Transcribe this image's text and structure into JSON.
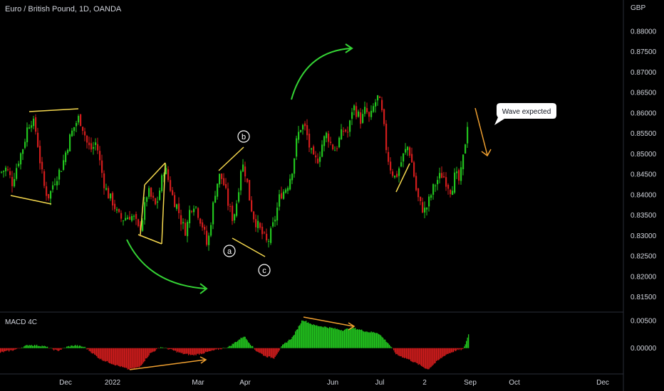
{
  "header": {
    "symbol_title": "Euro / British Pound, 1D, OANDA",
    "currency": "GBP"
  },
  "macd": {
    "title": "MACD 4C"
  },
  "annotation": {
    "callout_text": "Wave expected",
    "labels": [
      "a",
      "b",
      "c"
    ]
  },
  "colors": {
    "background": "#000000",
    "up": "#22c41e",
    "down": "#d01c1c",
    "pattern_line": "#f5d84e",
    "arrow_green": "#35d435",
    "arrow_orange": "#f0a030",
    "axis_text": "#d1d4dc",
    "separator": "#2a2e39"
  },
  "chart_data": [
    {
      "type": "candlestick",
      "title": "Euro / British Pound, 1D, OANDA",
      "x_ticks": [
        "Dec",
        "2022",
        "Mar",
        "Apr",
        "Jun",
        "Jul",
        "2",
        "Sep",
        "Oct",
        "Dec"
      ],
      "y_ticks": [
        "0.88000",
        "0.87500",
        "0.87000",
        "0.86500",
        "0.86000",
        "0.85500",
        "0.85000",
        "0.84500",
        "0.84000",
        "0.83500",
        "0.83000",
        "0.82500",
        "0.82000",
        "0.81500"
      ],
      "ylim": [
        0.8125,
        0.8845
      ],
      "close_path": [
        [
          0,
          0.8455
        ],
        [
          8,
          0.8465
        ],
        [
          16,
          0.843
        ],
        [
          24,
          0.848
        ],
        [
          32,
          0.852
        ],
        [
          38,
          0.857
        ],
        [
          44,
          0.8585
        ],
        [
          50,
          0.855
        ],
        [
          56,
          0.847
        ],
        [
          62,
          0.841
        ],
        [
          68,
          0.8395
        ],
        [
          74,
          0.843
        ],
        [
          80,
          0.845
        ],
        [
          86,
          0.847
        ],
        [
          92,
          0.851
        ],
        [
          98,
          0.8545
        ],
        [
          104,
          0.857
        ],
        [
          110,
          0.859
        ],
        [
          116,
          0.856
        ],
        [
          122,
          0.852
        ],
        [
          128,
          0.851
        ],
        [
          134,
          0.853
        ],
        [
          140,
          0.847
        ],
        [
          146,
          0.842
        ],
        [
          152,
          0.8395
        ],
        [
          158,
          0.838
        ],
        [
          164,
          0.835
        ],
        [
          170,
          0.834
        ],
        [
          176,
          0.8345
        ],
        [
          182,
          0.835
        ],
        [
          188,
          0.834
        ],
        [
          194,
          0.831
        ],
        [
          200,
          0.835
        ],
        [
          206,
          0.841
        ],
        [
          212,
          0.839
        ],
        [
          218,
          0.837
        ],
        [
          224,
          0.842
        ],
        [
          230,
          0.847
        ],
        [
          236,
          0.843
        ],
        [
          242,
          0.839
        ],
        [
          248,
          0.837
        ],
        [
          254,
          0.833
        ],
        [
          260,
          0.831
        ],
        [
          266,
          0.837
        ],
        [
          272,
          0.838
        ],
        [
          278,
          0.835
        ],
        [
          284,
          0.832
        ],
        [
          290,
          0.827
        ],
        [
          296,
          0.835
        ],
        [
          302,
          0.842
        ],
        [
          308,
          0.845
        ],
        [
          314,
          0.842
        ],
        [
          320,
          0.837
        ],
        [
          326,
          0.834
        ],
        [
          332,
          0.839
        ],
        [
          338,
          0.848
        ],
        [
          344,
          0.845
        ],
        [
          350,
          0.838
        ],
        [
          356,
          0.834
        ],
        [
          362,
          0.832
        ],
        [
          368,
          0.83
        ],
        [
          374,
          0.828
        ],
        [
          380,
          0.831
        ],
        [
          386,
          0.835
        ],
        [
          392,
          0.84
        ],
        [
          398,
          0.841
        ],
        [
          404,
          0.843
        ],
        [
          410,
          0.847
        ],
        [
          416,
          0.854
        ],
        [
          422,
          0.857
        ],
        [
          428,
          0.856
        ],
        [
          434,
          0.851
        ],
        [
          440,
          0.848
        ],
        [
          446,
          0.849
        ],
        [
          452,
          0.853
        ],
        [
          458,
          0.855
        ],
        [
          464,
          0.852
        ],
        [
          470,
          0.851
        ],
        [
          476,
          0.854
        ],
        [
          482,
          0.856
        ],
        [
          488,
          0.855
        ],
        [
          494,
          0.862
        ],
        [
          500,
          0.86
        ],
        [
          506,
          0.858
        ],
        [
          512,
          0.861
        ],
        [
          518,
          0.858
        ],
        [
          524,
          0.862
        ],
        [
          530,
          0.864
        ],
        [
          536,
          0.859
        ],
        [
          542,
          0.85
        ],
        [
          548,
          0.846
        ],
        [
          554,
          0.844
        ],
        [
          560,
          0.847
        ],
        [
          566,
          0.85
        ],
        [
          572,
          0.852
        ],
        [
          578,
          0.847
        ],
        [
          584,
          0.84
        ],
        [
          590,
          0.837
        ],
        [
          596,
          0.836
        ],
        [
          602,
          0.839
        ],
        [
          608,
          0.842
        ],
        [
          614,
          0.844
        ],
        [
          620,
          0.845
        ],
        [
          626,
          0.843
        ],
        [
          632,
          0.841
        ],
        [
          638,
          0.845
        ],
        [
          644,
          0.843
        ],
        [
          650,
          0.85
        ],
        [
          656,
          0.859
        ]
      ]
    },
    {
      "type": "bar",
      "title": "MACD 4C",
      "y_ticks": [
        "0.00500",
        "0.00000"
      ],
      "ylim": [
        -0.0042,
        0.0062
      ],
      "histogram_path": [
        [
          0,
          -0.0008
        ],
        [
          20,
          -0.0003
        ],
        [
          40,
          0.0006
        ],
        [
          60,
          0.0004
        ],
        [
          80,
          -0.0005
        ],
        [
          95,
          0.0003
        ],
        [
          105,
          0.0005
        ],
        [
          118,
          0.0002
        ],
        [
          140,
          -0.002
        ],
        [
          160,
          -0.003
        ],
        [
          180,
          -0.0039
        ],
        [
          195,
          -0.0035
        ],
        [
          210,
          -0.001
        ],
        [
          225,
          0.0002
        ],
        [
          240,
          -0.0003
        ],
        [
          255,
          -0.001
        ],
        [
          270,
          -0.0013
        ],
        [
          285,
          -0.0009
        ],
        [
          300,
          -0.0004
        ],
        [
          320,
          0.0002
        ],
        [
          342,
          0.0022
        ],
        [
          358,
          -0.0004
        ],
        [
          372,
          -0.0015
        ],
        [
          384,
          -0.0018
        ],
        [
          396,
          0.0005
        ],
        [
          410,
          0.002
        ],
        [
          424,
          0.0052
        ],
        [
          440,
          0.0042
        ],
        [
          460,
          0.0038
        ],
        [
          480,
          0.0033
        ],
        [
          495,
          0.0037
        ],
        [
          515,
          0.003
        ],
        [
          530,
          0.0028
        ],
        [
          545,
          0.0008
        ],
        [
          556,
          -0.0012
        ],
        [
          572,
          -0.002
        ],
        [
          590,
          -0.0032
        ],
        [
          600,
          -0.0039
        ],
        [
          612,
          -0.0025
        ],
        [
          625,
          -0.0012
        ],
        [
          640,
          -0.0004
        ],
        [
          650,
          -0.0002
        ],
        [
          657,
          0.0025
        ]
      ]
    }
  ]
}
